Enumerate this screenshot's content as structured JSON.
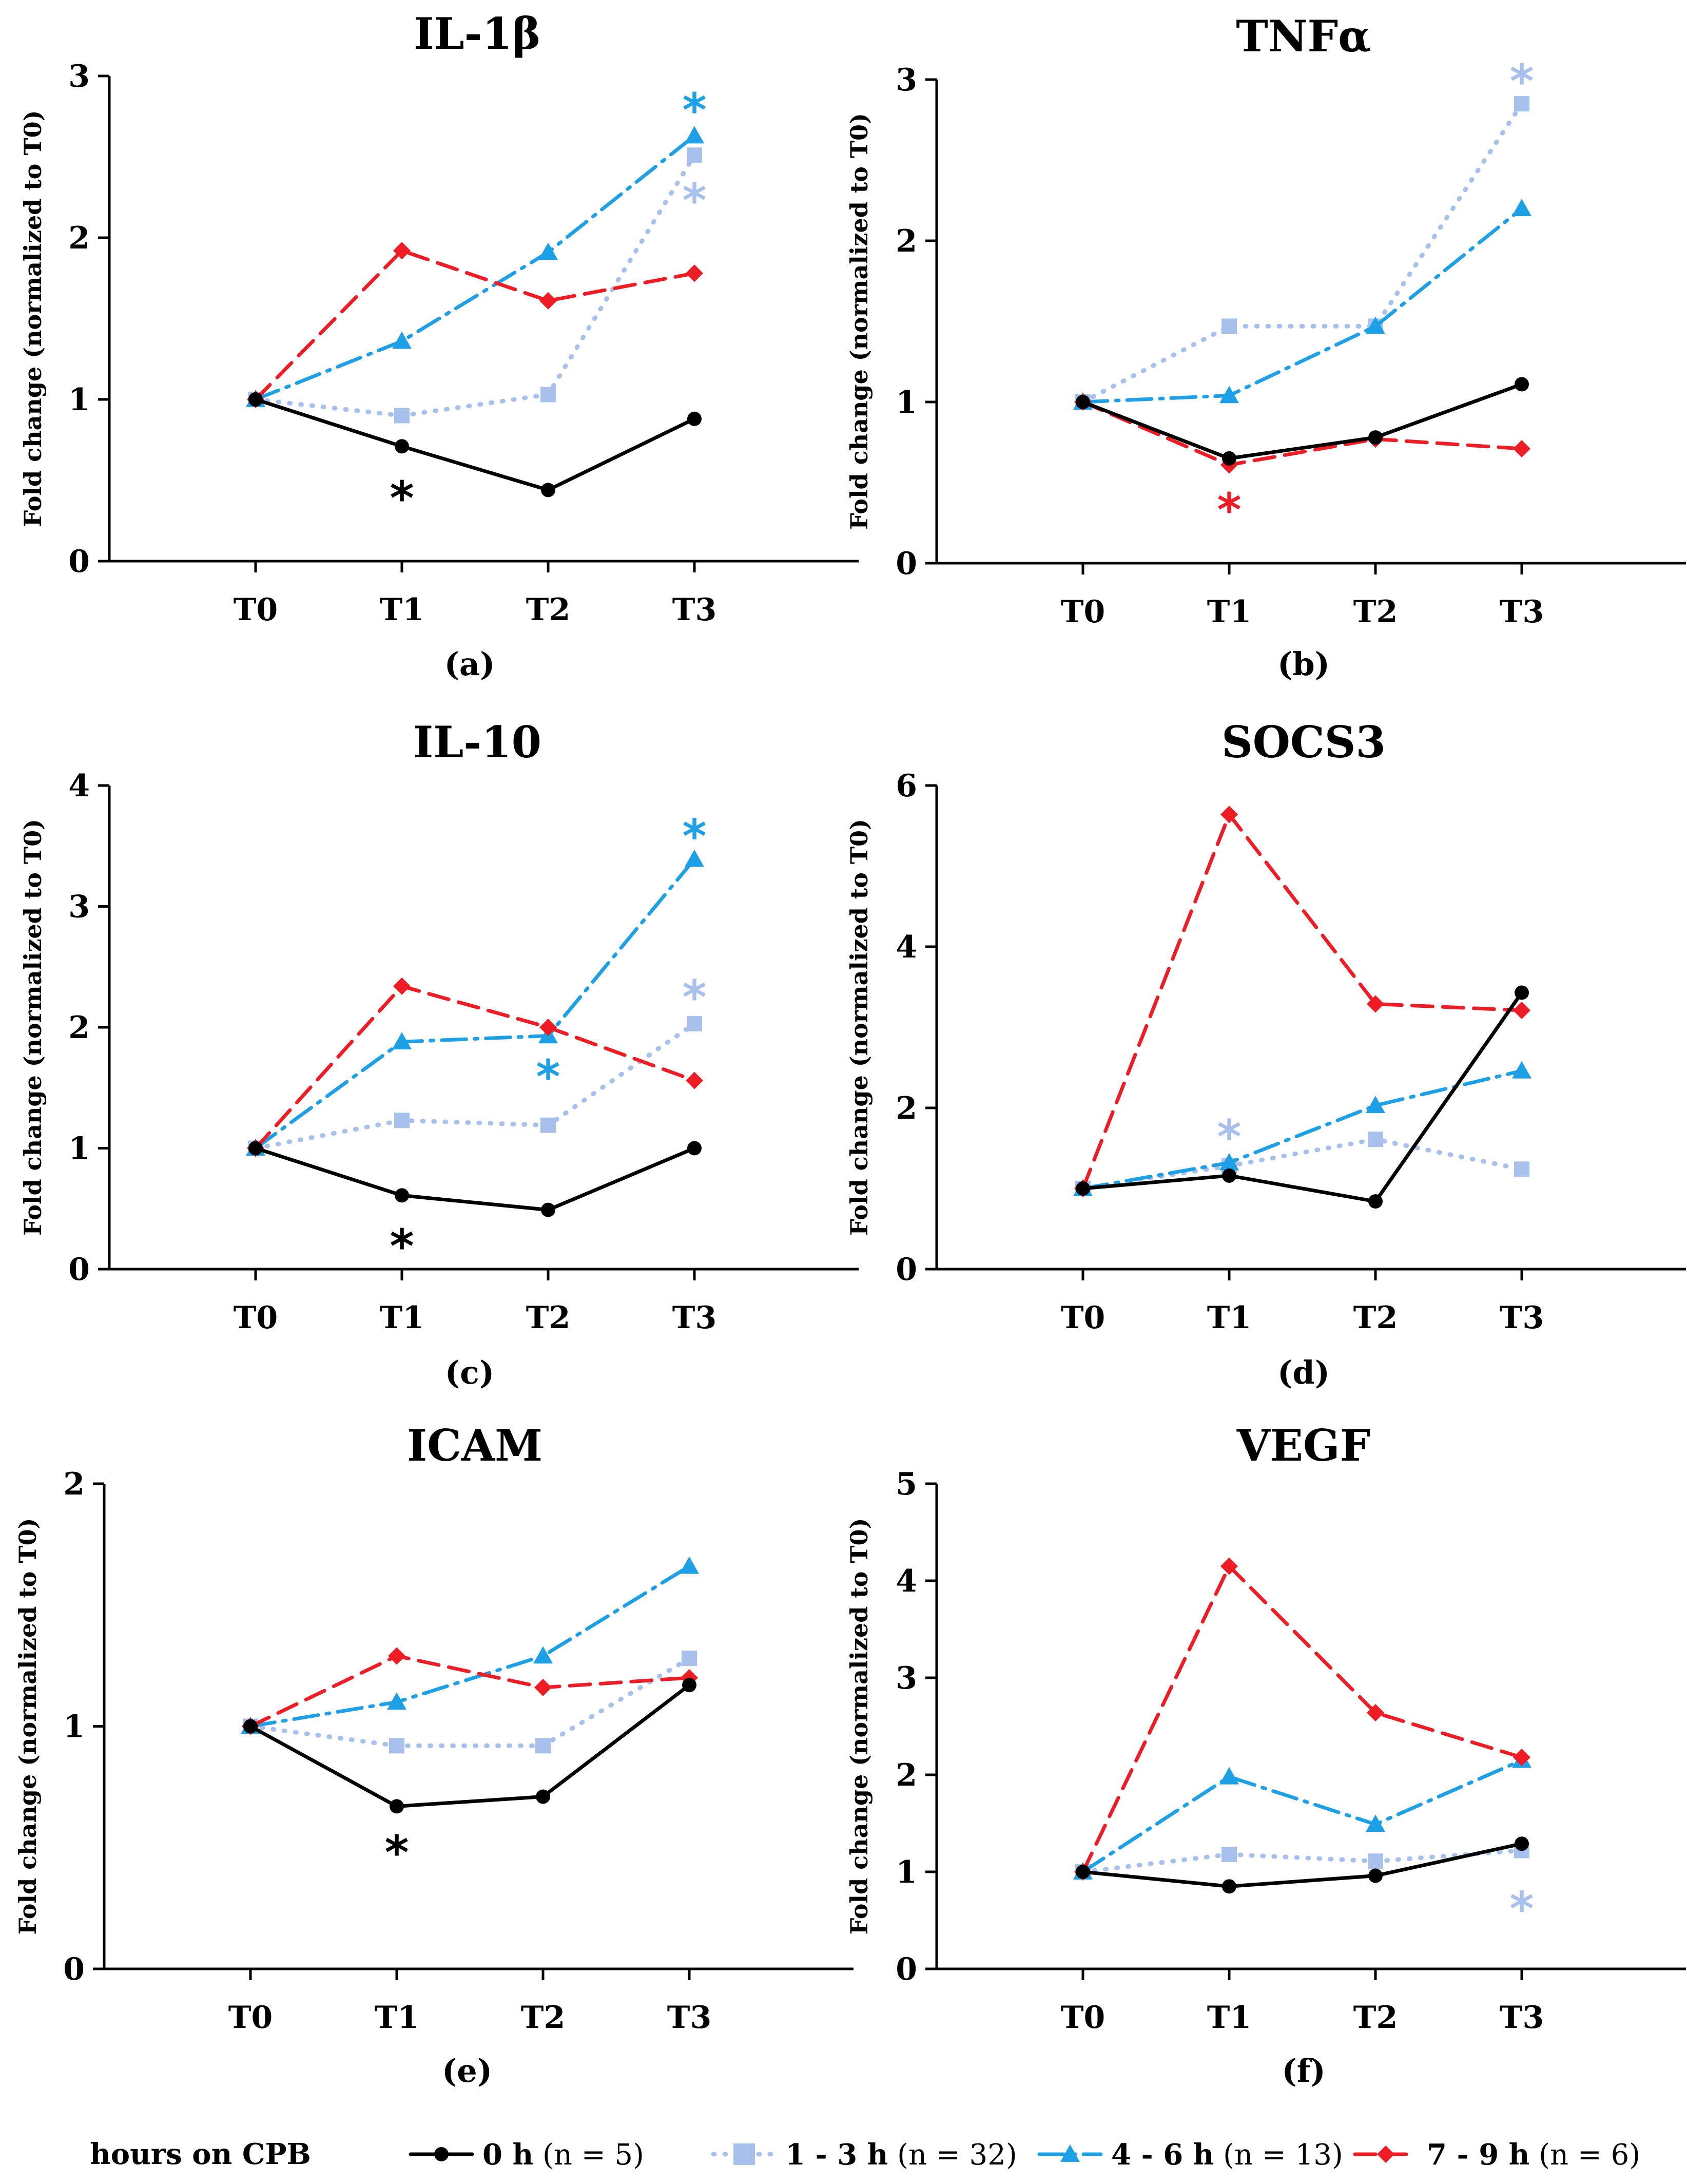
{
  "colors": {
    "h0": "#000000",
    "h1_3": "#a8c1ec",
    "h4_6": "#1ea0e6",
    "h7_9": "#ee1c24"
  },
  "legend": {
    "title": "hours on CPB",
    "items": [
      {
        "key": "h0",
        "label_bold": "0 h",
        "label_rest": " (n = 5)",
        "n_bold": "n",
        "marker": "circle",
        "dash": "solid"
      },
      {
        "key": "h1_3",
        "label_bold": "1 - 3 h",
        "label_rest": " (n = 32)",
        "marker": "square",
        "dash": "dotted"
      },
      {
        "key": "h4_6",
        "label_bold": "4 - 6 h",
        "label_rest": " (n = 13)",
        "marker": "triangle",
        "dash": "dashdot"
      },
      {
        "key": "h7_9",
        "label_bold": "7 - 9 h",
        "label_rest": " (n = 6)",
        "marker": "diamond",
        "dash": "dashed"
      }
    ]
  },
  "chart_data": [
    {
      "type": "line",
      "title": "IL-1β",
      "panel": "(a)",
      "ylabel": "Fold change (normalized to T0)",
      "categories": [
        "T0",
        "T1",
        "T2",
        "T3"
      ],
      "ylim": [
        0,
        3
      ],
      "yticks": [
        0,
        1,
        2,
        3
      ],
      "series": [
        {
          "key": "h0",
          "name": "0 h",
          "values": [
            1.0,
            0.71,
            0.44,
            0.88
          ]
        },
        {
          "key": "h1_3",
          "name": "1 - 3 h",
          "values": [
            1.0,
            0.9,
            1.03,
            2.51
          ]
        },
        {
          "key": "h4_6",
          "name": "4 - 6 h",
          "values": [
            1.0,
            1.36,
            1.91,
            2.63
          ]
        },
        {
          "key": "h7_9",
          "name": "7 - 9 h",
          "values": [
            1.0,
            1.92,
            1.61,
            1.78
          ]
        }
      ],
      "annotations": [
        {
          "text": "*",
          "key": "h0",
          "x": "T1",
          "y": 0.45
        },
        {
          "text": "*",
          "key": "h4_6",
          "x": "T3",
          "y": 2.85
        },
        {
          "text": "*",
          "key": "h1_3",
          "x": "T3",
          "y": 2.29
        }
      ]
    },
    {
      "type": "line",
      "title": "TNFα",
      "panel": "(b)",
      "ylabel": "Fold change (normalized to T0)",
      "categories": [
        "T0",
        "T1",
        "T2",
        "T3"
      ],
      "ylim": [
        0,
        3
      ],
      "yticks": [
        0,
        1,
        2,
        3
      ],
      "series": [
        {
          "key": "h0",
          "name": "0 h",
          "values": [
            1.0,
            0.65,
            0.78,
            1.11
          ]
        },
        {
          "key": "h1_3",
          "name": "1 - 3 h",
          "values": [
            1.0,
            1.47,
            1.47,
            2.85
          ]
        },
        {
          "key": "h4_6",
          "name": "4 - 6 h",
          "values": [
            1.0,
            1.04,
            1.47,
            2.2
          ]
        },
        {
          "key": "h7_9",
          "name": "7 - 9 h",
          "values": [
            1.0,
            0.61,
            0.77,
            0.71
          ]
        }
      ],
      "annotations": [
        {
          "text": "*",
          "key": "h7_9",
          "x": "T1",
          "y": 0.39
        },
        {
          "text": "*",
          "key": "h1_3",
          "x": "T3",
          "y": 3.05
        }
      ]
    },
    {
      "type": "line",
      "title": "IL-10",
      "panel": "(c)",
      "ylabel": "Fold change (normalized to T0)",
      "categories": [
        "T0",
        "T1",
        "T2",
        "T3"
      ],
      "ylim": [
        0,
        4
      ],
      "yticks": [
        0,
        1,
        2,
        3,
        4
      ],
      "series": [
        {
          "key": "h0",
          "name": "0 h",
          "values": [
            1.0,
            0.61,
            0.49,
            1.0
          ]
        },
        {
          "key": "h1_3",
          "name": "1 - 3 h",
          "values": [
            1.0,
            1.23,
            1.19,
            2.03
          ]
        },
        {
          "key": "h4_6",
          "name": "4 - 6 h",
          "values": [
            1.0,
            1.88,
            1.93,
            3.39
          ]
        },
        {
          "key": "h7_9",
          "name": "7 - 9 h",
          "values": [
            1.0,
            2.34,
            2.0,
            1.56
          ]
        }
      ],
      "annotations": [
        {
          "text": "*",
          "key": "h0",
          "x": "T1",
          "y": 0.27
        },
        {
          "text": "*",
          "key": "h4_6",
          "x": "T2",
          "y": 1.67
        },
        {
          "text": "*",
          "key": "h4_6",
          "x": "T3",
          "y": 3.66
        },
        {
          "text": "*",
          "key": "h1_3",
          "x": "T3",
          "y": 2.33
        }
      ]
    },
    {
      "type": "line",
      "title": "SOCS3",
      "panel": "(d)",
      "ylabel": "Fold change (normalized to T0)",
      "categories": [
        "T0",
        "T1",
        "T2",
        "T3"
      ],
      "ylim": [
        0,
        6
      ],
      "yticks": [
        0,
        2,
        4,
        6
      ],
      "series": [
        {
          "key": "h0",
          "name": "0 h",
          "values": [
            1.0,
            1.16,
            0.84,
            3.43
          ]
        },
        {
          "key": "h1_3",
          "name": "1 - 3 h",
          "values": [
            1.0,
            1.28,
            1.61,
            1.24
          ]
        },
        {
          "key": "h4_6",
          "name": "4 - 6 h",
          "values": [
            1.0,
            1.32,
            2.03,
            2.46
          ]
        },
        {
          "key": "h7_9",
          "name": "7 - 9 h",
          "values": [
            1.0,
            5.64,
            3.29,
            3.21
          ]
        }
      ],
      "annotations": [
        {
          "text": "*",
          "key": "h1_3",
          "x": "T1",
          "y": 1.76
        }
      ]
    },
    {
      "type": "line",
      "title": "ICAM",
      "panel": "(e)",
      "ylabel": "Fold change (normalized to T0)",
      "categories": [
        "T0",
        "T1",
        "T2",
        "T3"
      ],
      "ylim": [
        0,
        2
      ],
      "yticks": [
        0,
        1,
        2
      ],
      "series": [
        {
          "key": "h0",
          "name": "0 h",
          "values": [
            1.0,
            0.67,
            0.71,
            1.17
          ]
        },
        {
          "key": "h1_3",
          "name": "1 - 3 h",
          "values": [
            1.0,
            0.92,
            0.92,
            1.28
          ]
        },
        {
          "key": "h4_6",
          "name": "4 - 6 h",
          "values": [
            1.0,
            1.1,
            1.29,
            1.66
          ]
        },
        {
          "key": "h7_9",
          "name": "7 - 9 h",
          "values": [
            1.0,
            1.29,
            1.16,
            1.2
          ]
        }
      ],
      "annotations": [
        {
          "text": "*",
          "key": "h0",
          "x": "T1",
          "y": 0.52
        }
      ]
    },
    {
      "type": "line",
      "title": "VEGF",
      "panel": "(f)",
      "ylabel": "Fold change (normalized to T0)",
      "categories": [
        "T0",
        "T1",
        "T2",
        "T3"
      ],
      "ylim": [
        0,
        5
      ],
      "yticks": [
        0,
        1,
        2,
        3,
        4,
        5
      ],
      "series": [
        {
          "key": "h0",
          "name": "0 h",
          "values": [
            1.0,
            0.85,
            0.96,
            1.29
          ]
        },
        {
          "key": "h1_3",
          "name": "1 - 3 h",
          "values": [
            1.0,
            1.18,
            1.11,
            1.22
          ]
        },
        {
          "key": "h4_6",
          "name": "4 - 6 h",
          "values": [
            1.0,
            1.98,
            1.49,
            2.15
          ]
        },
        {
          "key": "h7_9",
          "name": "7 - 9 h",
          "values": [
            1.0,
            4.15,
            2.64,
            2.18
          ]
        }
      ],
      "annotations": [
        {
          "text": "*",
          "key": "h1_3",
          "x": "T3",
          "y": 0.72
        }
      ]
    }
  ]
}
